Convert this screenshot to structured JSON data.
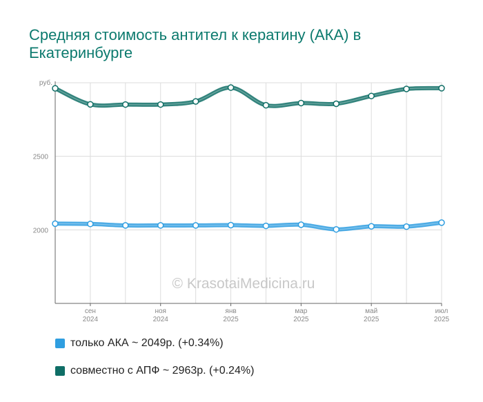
{
  "title": "Средняя стоимость антител к кератину (АКА) в Екатеринбурге",
  "watermark": "© KrasotaiMedicina.ru",
  "legend": [
    {
      "label": "только АКА ~ 2049р. (+0.34%)",
      "color": "#2f9ee0"
    },
    {
      "label": "совместно с АПФ ~ 2963р. (+0.24%)",
      "color": "#0f6e66"
    }
  ],
  "chart_data": {
    "type": "line",
    "ylabel": "руб.",
    "ylim": [
      1500,
      3000
    ],
    "yticks": [
      2000,
      2500
    ],
    "grid": true,
    "x_ticks": [
      {
        "line1": "сен",
        "line2": "2024"
      },
      {
        "line1": "ноя",
        "line2": "2024"
      },
      {
        "line1": "янв",
        "line2": "2025"
      },
      {
        "line1": "мар",
        "line2": "2025"
      },
      {
        "line1": "май",
        "line2": "2025"
      },
      {
        "line1": "июл",
        "line2": "2025"
      }
    ],
    "x": [
      "2024-08",
      "2024-09",
      "2024-10",
      "2024-11",
      "2024-12",
      "2025-01",
      "2025-02",
      "2025-03",
      "2025-04",
      "2025-05",
      "2025-06",
      "2025-07"
    ],
    "series": [
      {
        "name": "только АКА",
        "color": "#2f9ee0",
        "values": [
          2042,
          2040,
          2030,
          2030,
          2030,
          2032,
          2027,
          2035,
          2003,
          2024,
          2022,
          2049
        ]
      },
      {
        "name": "совместно с АПФ",
        "color": "#0f6e66",
        "values": [
          2962,
          2853,
          2852,
          2852,
          2873,
          2967,
          2847,
          2862,
          2857,
          2910,
          2958,
          2963
        ]
      }
    ]
  }
}
